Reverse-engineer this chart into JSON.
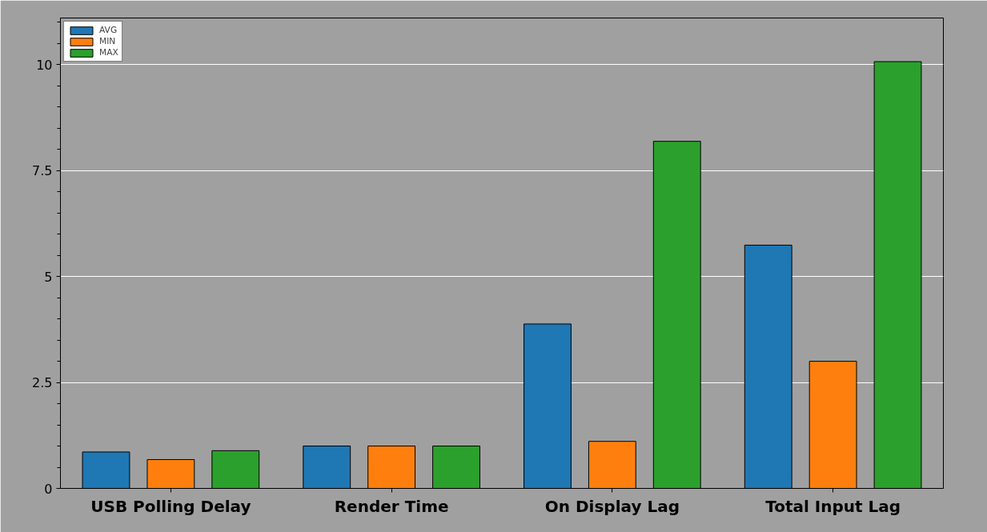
{
  "chart_data": {
    "type": "bar",
    "categories": [
      "USB Polling Delay",
      "Render Time",
      "On Display Lag",
      "Total Input Lag"
    ],
    "series": [
      {
        "name": "AVG",
        "color": "#1f77b4",
        "values": [
          0.86,
          1.0,
          3.88,
          5.74
        ]
      },
      {
        "name": "MIN",
        "color": "#ff7f0e",
        "values": [
          0.68,
          1.0,
          1.11,
          3.0
        ]
      },
      {
        "name": "MAX",
        "color": "#2ca02c",
        "values": [
          0.89,
          1.0,
          8.19,
          10.07
        ]
      }
    ],
    "ylim": [
      0,
      11.1
    ],
    "yticks": [
      0,
      2.5,
      5,
      7.5,
      10
    ],
    "grid": "y",
    "legend": "top left"
  }
}
